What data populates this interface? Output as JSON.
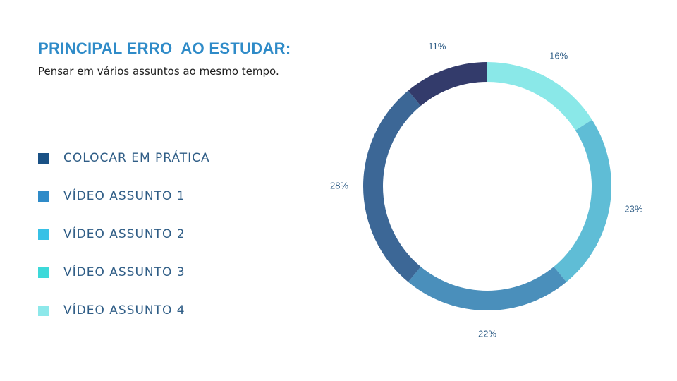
{
  "header": {
    "title": "PRINCIPAL ERRO  AO ESTUDAR:",
    "subtitle": "Pensar em vários assuntos ao mesmo tempo."
  },
  "legend": {
    "items": [
      {
        "label": "COLOCAR EM PRÁTICA",
        "color": "#1a5185"
      },
      {
        "label": "VÍDEO ASSUNTO 1",
        "color": "#2f8bc8"
      },
      {
        "label": "VÍDEO ASSUNTO 2",
        "color": "#37c1e6"
      },
      {
        "label": "VÍDEO ASSUNTO 3",
        "color": "#3dd9d9"
      },
      {
        "label": "VÍDEO ASSUNTO 4",
        "color": "#8de8ea"
      }
    ]
  },
  "colors": {
    "title": "#2f8bc8",
    "labels": "#2f5d86"
  },
  "chart_data": {
    "type": "pie",
    "variant": "donut",
    "start": "top",
    "direction": "clockwise",
    "slices": [
      {
        "value": 16,
        "label": "16%",
        "color": "#8ae8e8"
      },
      {
        "value": 23,
        "label": "23%",
        "color": "#5fbdd6"
      },
      {
        "value": 22,
        "label": "22%",
        "color": "#4a8fbb"
      },
      {
        "value": 28,
        "label": "28%",
        "color": "#3c6796"
      },
      {
        "value": 11,
        "label": "11%",
        "color": "#333b6b"
      }
    ]
  }
}
